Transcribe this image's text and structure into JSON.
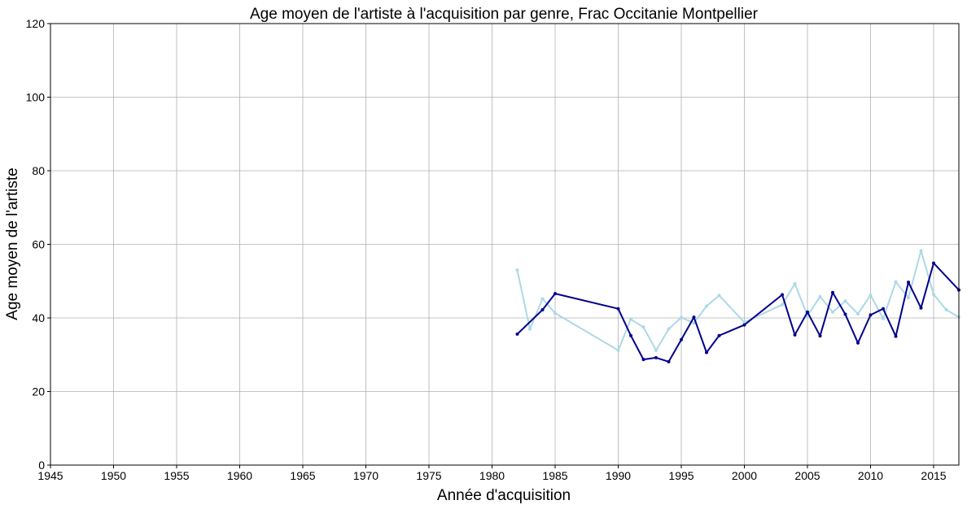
{
  "chart_data": {
    "type": "line",
    "title": "Age moyen de l'artiste à l'acquisition par genre, Frac Occitanie Montpellier",
    "xlabel": "Année d'acquisition",
    "ylabel": "Age moyen de l'artiste",
    "xlim": [
      1945,
      2017
    ],
    "ylim": [
      0,
      120
    ],
    "xticks": [
      1945,
      1950,
      1955,
      1960,
      1965,
      1970,
      1975,
      1980,
      1985,
      1990,
      1995,
      2000,
      2005,
      2010,
      2015
    ],
    "yticks": [
      0,
      20,
      40,
      60,
      80,
      100,
      120
    ],
    "grid": true,
    "series": [
      {
        "color": "#add8e6",
        "x": [
          1982,
          1983,
          1984,
          1985,
          1990,
          1991,
          1992,
          1993,
          1994,
          1995,
          1996,
          1997,
          1998,
          2000,
          2003,
          2004,
          2005,
          2006,
          2007,
          2008,
          2009,
          2010,
          2011,
          2012,
          2013,
          2014,
          2015,
          2016,
          2017
        ],
        "y": [
          53,
          37,
          45.2,
          41.3,
          31.2,
          39.6,
          37.5,
          31.2,
          37,
          40.1,
          38.6,
          43.2,
          46.1,
          38.8,
          43.6,
          49.3,
          40.6,
          45.8,
          41.6,
          44.6,
          41.1,
          46.2,
          39.8,
          49.8,
          45.5,
          58.3,
          46.4,
          42.2,
          40.2
        ]
      },
      {
        "color": "#00008b",
        "x": [
          1982,
          1984,
          1985,
          1990,
          1991,
          1992,
          1993,
          1994,
          1995,
          1996,
          1997,
          1998,
          2000,
          2003,
          2004,
          2005,
          2006,
          2007,
          2008,
          2009,
          2010,
          2011,
          2012,
          2013,
          2014,
          2015,
          2017
        ],
        "y": [
          35.6,
          42.2,
          46.6,
          42.5,
          35.2,
          28.7,
          29.2,
          28.1,
          34.1,
          40.2,
          30.6,
          35.2,
          38.1,
          46.3,
          35.4,
          41.6,
          35.1,
          46.9,
          41,
          33.2,
          40.8,
          42.5,
          35,
          49.7,
          42.7,
          54.9,
          47.6
        ]
      }
    ]
  }
}
